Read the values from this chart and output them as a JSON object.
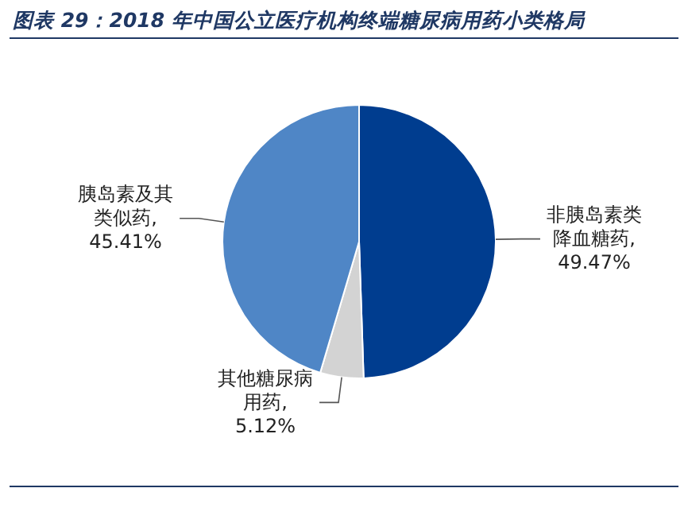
{
  "chart_data": {
    "type": "pie",
    "title": "图表 29：2018 年中国公立医疗机构终端糖尿病用药小类格局",
    "categories": [
      "非胰岛素类降血糖药",
      "其他糖尿病用药",
      "胰岛素及其类似药"
    ],
    "values": [
      49.47,
      5.12,
      45.41
    ],
    "colors": [
      "#003d8f",
      "#d3d3d3",
      "#4f86c6"
    ],
    "value_labels": [
      ", 49.47%",
      ", 5.12%",
      ", 45.41%"
    ]
  }
}
